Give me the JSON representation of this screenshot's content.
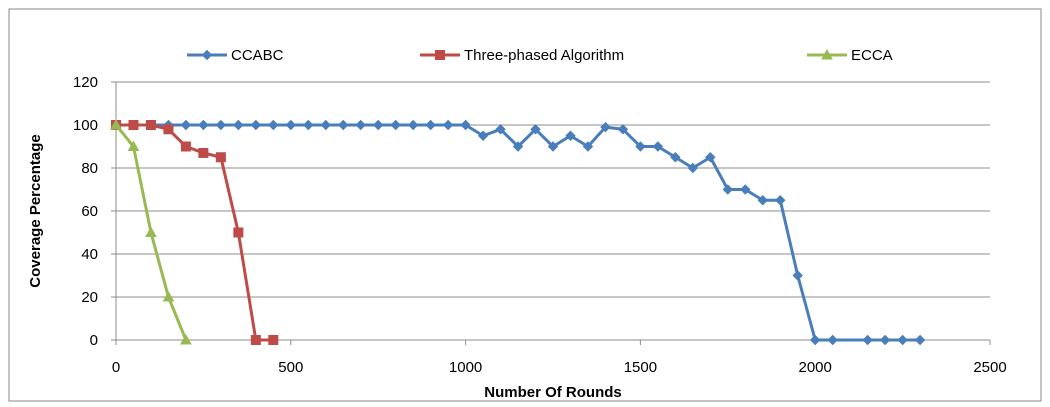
{
  "chart_data": {
    "type": "line",
    "title": "",
    "xlabel": "Number Of Rounds",
    "ylabel": "Coverage Percentage",
    "xlim": [
      0,
      2500
    ],
    "ylim": [
      0,
      120
    ],
    "xticks": [
      0,
      500,
      1000,
      1500,
      2000,
      2500
    ],
    "yticks": [
      0,
      20,
      40,
      60,
      80,
      100,
      120
    ],
    "grid": "horizontal",
    "legend_position": "top",
    "series": [
      {
        "name": "CCABC",
        "color": "#4a7ebb",
        "marker": "diamond",
        "x": [
          0,
          50,
          100,
          150,
          200,
          250,
          300,
          350,
          400,
          450,
          500,
          550,
          600,
          650,
          700,
          750,
          800,
          850,
          900,
          950,
          1000,
          1050,
          1100,
          1150,
          1200,
          1250,
          1300,
          1350,
          1400,
          1450,
          1500,
          1550,
          1600,
          1650,
          1700,
          1750,
          1800,
          1850,
          1900,
          1950,
          2000,
          2050,
          2150,
          2200,
          2250,
          2300
        ],
        "y": [
          100,
          100,
          100,
          100,
          100,
          100,
          100,
          100,
          100,
          100,
          100,
          100,
          100,
          100,
          100,
          100,
          100,
          100,
          100,
          100,
          100,
          95,
          98,
          90,
          98,
          90,
          95,
          90,
          99,
          98,
          90,
          90,
          85,
          80,
          85,
          70,
          70,
          65,
          65,
          30,
          0,
          0,
          0,
          0,
          0,
          0
        ]
      },
      {
        "name": "Three-phased Algorithm",
        "color": "#be4b48",
        "marker": "square",
        "x": [
          0,
          50,
          100,
          150,
          200,
          250,
          300,
          350,
          400,
          450
        ],
        "y": [
          100,
          100,
          100,
          98,
          90,
          87,
          85,
          50,
          0,
          0
        ]
      },
      {
        "name": "ECCA",
        "color": "#98b954",
        "marker": "triangle",
        "x": [
          0,
          50,
          100,
          150,
          200
        ],
        "y": [
          100,
          90,
          50,
          20,
          0
        ]
      }
    ]
  }
}
